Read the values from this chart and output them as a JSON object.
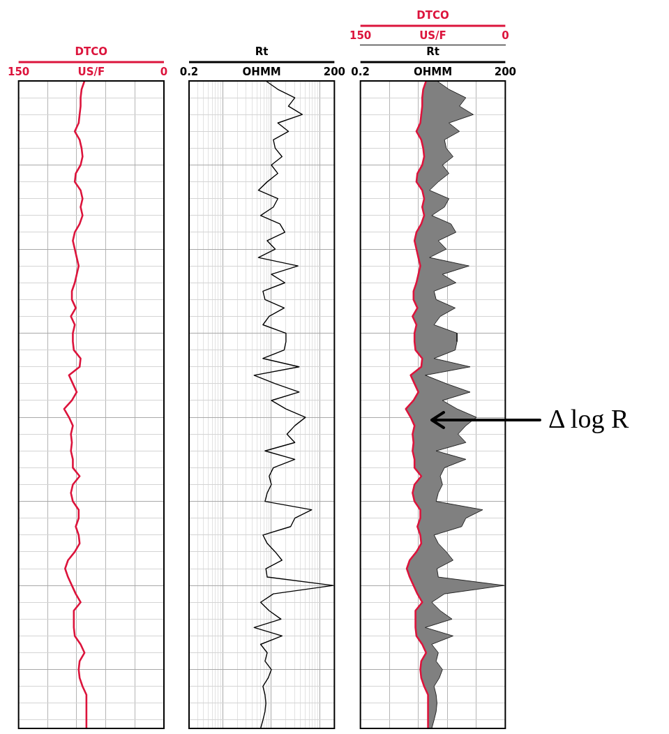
{
  "chart_data": [
    {
      "type": "line",
      "orientation": "horizontal",
      "legend": "top",
      "grid": true,
      "annotations": [
        "US/F"
      ],
      "categories": [
        null,
        null,
        null,
        null,
        null,
        null,
        null,
        null,
        null,
        null,
        null,
        null,
        null,
        null,
        null,
        null,
        null,
        null,
        null,
        null,
        null,
        null,
        null,
        null,
        null,
        null,
        null,
        null,
        null,
        null,
        null,
        null,
        null,
        null,
        null,
        null,
        null,
        null,
        null,
        null,
        null,
        null,
        null,
        null,
        null,
        null,
        null,
        null,
        null,
        null,
        null,
        null,
        null,
        null,
        null,
        null,
        null,
        null,
        null,
        null,
        null,
        null,
        null,
        null,
        null,
        null,
        null,
        null,
        null,
        null,
        null,
        null,
        null,
        null,
        null,
        null,
        null,
        null
      ],
      "xlim": [
        150,
        0
      ],
      "xticks": [
        150,
        {
          "value": 120,
          "label": null
        },
        {
          "value": 90,
          "label": null
        },
        {
          "value": 60,
          "label": null
        },
        {
          "value": 30,
          "label": null
        },
        0
      ],
      "series": [
        {
          "name": "DTCO",
          "color": "#dc143c",
          "values": [
            82,
            85,
            86,
            86,
            87,
            88,
            92,
            87,
            85,
            84,
            86,
            91,
            92,
            86,
            84,
            86,
            84,
            87,
            92,
            94,
            92,
            90,
            88,
            90,
            92,
            95,
            95,
            91,
            96,
            92,
            94,
            94,
            93,
            86,
            87,
            98,
            94,
            90,
            95,
            103,
            98,
            94,
            96,
            95,
            96,
            94,
            94,
            87,
            94,
            96,
            94,
            88,
            88,
            91,
            88,
            87,
            92,
            99,
            102,
            99,
            95,
            91,
            86,
            93,
            93,
            93,
            92,
            86,
            82,
            87,
            88,
            87,
            84,
            80,
            80,
            80,
            80,
            80
          ]
        }
      ]
    },
    {
      "type": "line",
      "orientation": "horizontal",
      "legend": "top",
      "grid": true,
      "log": "x",
      "annotations": [
        "OHMM"
      ],
      "categories": [
        null,
        null,
        null,
        null,
        null,
        null,
        null,
        null,
        null,
        null,
        null,
        null,
        null,
        null,
        null,
        null,
        null,
        null,
        null,
        null,
        null,
        null,
        null,
        null,
        null,
        null,
        null,
        null,
        null,
        null,
        null,
        null,
        null,
        null,
        null,
        null,
        null,
        null,
        null,
        null,
        null,
        null,
        null,
        null,
        null,
        null,
        null,
        null,
        null,
        null,
        null,
        null,
        null,
        null,
        null,
        null,
        null,
        null,
        null,
        null,
        null,
        null,
        null,
        null,
        null,
        null,
        null,
        null,
        null,
        null,
        null,
        null,
        null,
        null,
        null,
        null,
        null,
        null
      ],
      "xlim": [
        0.2,
        200
      ],
      "xticks": [
        0.2,
        {
          "value": 0.3,
          "label": null
        },
        {
          "value": 0.4,
          "label": null
        },
        {
          "value": 0.5,
          "label": null
        },
        {
          "value": 0.6,
          "label": null
        },
        {
          "value": 0.7,
          "label": null
        },
        {
          "value": 0.8,
          "label": null
        },
        {
          "value": 0.9,
          "label": null
        },
        {
          "value": 1,
          "label": null
        },
        {
          "value": 2,
          "label": null
        },
        {
          "value": 3,
          "label": null
        },
        {
          "value": 4,
          "label": null
        },
        {
          "value": 5,
          "label": null
        },
        {
          "value": 6,
          "label": null
        },
        {
          "value": 7,
          "label": null
        },
        {
          "value": 8,
          "label": null
        },
        {
          "value": 9,
          "label": null
        },
        {
          "value": 10,
          "label": null
        },
        {
          "value": 20,
          "label": null
        },
        {
          "value": 30,
          "label": null
        },
        {
          "value": 40,
          "label": null
        },
        {
          "value": 50,
          "label": null
        },
        {
          "value": 60,
          "label": null
        },
        {
          "value": 70,
          "label": null
        },
        {
          "value": 80,
          "label": null
        },
        {
          "value": 90,
          "label": null
        },
        {
          "value": 100,
          "label": null
        },
        200
      ],
      "series": [
        {
          "name": "Rt",
          "color": "#000000",
          "values": [
            7.7,
            13.6,
            30.5,
            22.5,
            43.5,
            13.6,
            22.5,
            11,
            12,
            16.6,
            10,
            13.6,
            8.2,
            5.4,
            13.6,
            11,
            6,
            15,
            19,
            8.2,
            12,
            5.4,
            35.5,
            10,
            19,
            6.7,
            7.4,
            18.4,
            9,
            6.7,
            20,
            20,
            18.4,
            6.7,
            37.4,
            4.4,
            12,
            37.4,
            10,
            20,
            50.6,
            30.5,
            21,
            30.5,
            7.4,
            30.5,
            11,
            9,
            10,
            8.2,
            7.4,
            68,
            30.5,
            25,
            6.7,
            8.2,
            12,
            16.6,
            7.7,
            8.2,
            189,
            11,
            6,
            9,
            15.8,
            4.4,
            16.6,
            6,
            8.2,
            7.4,
            10,
            8.6,
            6.7,
            7.4,
            7.7,
            7.4,
            6.7,
            6
          ]
        }
      ]
    },
    {
      "type": "line",
      "orientation": "horizontal",
      "legend": "top",
      "grid": true,
      "log": "x",
      "annotations": [
        "OHMM",
        "US/F",
        "Δ log R"
      ],
      "categories": [
        null,
        null,
        null,
        null,
        null,
        null,
        null,
        null,
        null,
        null,
        null,
        null,
        null,
        null,
        null,
        null,
        null,
        null,
        null,
        null,
        null,
        null,
        null,
        null,
        null,
        null,
        null,
        null,
        null,
        null,
        null,
        null,
        null,
        null,
        null,
        null,
        null,
        null,
        null,
        null,
        null,
        null,
        null,
        null,
        null,
        null,
        null,
        null,
        null,
        null,
        null,
        null,
        null,
        null,
        null,
        null,
        null,
        null,
        null,
        null,
        null,
        null,
        null,
        null,
        null,
        null,
        null,
        null,
        null,
        null,
        null,
        null,
        null,
        null,
        null,
        null,
        null,
        null
      ],
      "xlim": [
        0.2,
        200
      ],
      "xticks": [
        0.2,
        200
      ],
      "x2lim": [
        150,
        0
      ],
      "x2ticks": [
        150,
        {
          "value": 120,
          "label": null
        },
        {
          "value": 90,
          "label": null
        },
        {
          "value": 60,
          "label": null
        },
        {
          "value": 30,
          "label": null
        },
        0
      ],
      "series": [
        {
          "name": "DTCO",
          "color": "#dc143c",
          "axis": "x2",
          "values": [
            82,
            85,
            86,
            86,
            87,
            88,
            92,
            87,
            85,
            84,
            86,
            91,
            92,
            86,
            84,
            86,
            84,
            87,
            92,
            94,
            92,
            90,
            88,
            90,
            92,
            95,
            95,
            91,
            96,
            92,
            94,
            94,
            93,
            86,
            87,
            98,
            94,
            90,
            95,
            103,
            98,
            94,
            96,
            95,
            96,
            94,
            94,
            87,
            94,
            96,
            94,
            88,
            88,
            91,
            88,
            87,
            92,
            99,
            102,
            99,
            95,
            91,
            86,
            93,
            93,
            93,
            92,
            86,
            82,
            87,
            88,
            87,
            84,
            80,
            80,
            80,
            80,
            80
          ]
        },
        {
          "name": "Rt",
          "type": "area",
          "color": "#000000",
          "values": [
            7.7,
            13.6,
            30.5,
            22.5,
            43.5,
            13.6,
            22.5,
            11,
            12,
            16.6,
            10,
            13.6,
            8.2,
            5.4,
            13.6,
            11,
            6,
            15,
            19,
            8.2,
            12,
            5.4,
            35.5,
            10,
            19,
            6.7,
            7.4,
            18.4,
            9,
            6.7,
            20,
            20,
            18.4,
            6.7,
            37.4,
            4.4,
            12,
            37.4,
            10,
            20,
            50.6,
            30.5,
            21,
            30.5,
            7.4,
            30.5,
            11,
            9,
            10,
            8.2,
            7.4,
            68,
            30.5,
            25,
            6.7,
            8.2,
            12,
            16.6,
            7.7,
            8.2,
            189,
            11,
            6,
            9,
            15.8,
            4.4,
            16.6,
            6,
            8.2,
            7.4,
            10,
            8.6,
            6.7,
            7.4,
            7.7,
            7.4,
            6.7,
            6
          ]
        }
      ]
    }
  ]
}
